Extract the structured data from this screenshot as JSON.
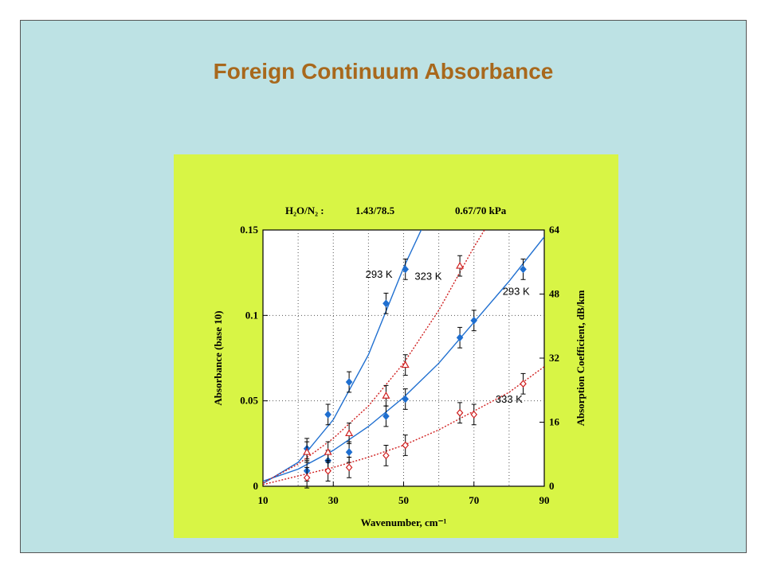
{
  "chart_data": {
    "type": "scatter",
    "title": "Foreign Continuum Absorbance",
    "header": [
      "H₂O/N₂ :",
      "1.43/78.5",
      "0.67/70 kPa"
    ],
    "x_label": "Wavenumber, cm⁻¹",
    "y_label": "Absorbance (base 10)",
    "y2_label": "Absorption Coefficient, dB/km",
    "xlim": [
      10,
      90
    ],
    "xticks": [
      10,
      30,
      50,
      70,
      90
    ],
    "xgrid": [
      20,
      30,
      40,
      50,
      60,
      70,
      80
    ],
    "ylim": [
      0,
      0.15
    ],
    "yticks": [
      0,
      0.05,
      0.1,
      0.15
    ],
    "ygrid": [
      0.05,
      0.1
    ],
    "y2lim": [
      0,
      64
    ],
    "y2ticks": [
      0,
      16,
      32,
      48,
      64
    ],
    "series": [
      {
        "color": "#1f6fd0",
        "marker": "filled-diamond",
        "line": "solid",
        "x": [
          22.5,
          28.5,
          34.5,
          45,
          50.5
        ],
        "values": [
          0.022,
          0.042,
          0.061,
          0.107,
          0.127
        ],
        "errors": [
          0.006,
          0.006,
          0.006,
          0.006,
          0.006
        ],
        "fit_x": [
          10,
          20,
          30,
          40,
          50,
          55
        ],
        "fit_values": [
          0.0016,
          0.014,
          0.039,
          0.077,
          0.128,
          0.15
        ]
      },
      {
        "color": "#1f6fd0",
        "marker": "filled-diamond",
        "line": "solid",
        "x": [
          22.5,
          28.5,
          34.5,
          45,
          50.5,
          66,
          70,
          84
        ],
        "values": [
          0.009,
          0.015,
          0.02,
          0.041,
          0.051,
          0.087,
          0.097,
          0.127
        ],
        "errors": [
          0.006,
          0.006,
          0.006,
          0.006,
          0.006,
          0.006,
          0.006,
          0.006
        ],
        "fit_x": [
          10,
          20,
          30,
          40,
          50,
          60,
          70,
          80,
          90
        ],
        "fit_values": [
          0.003,
          0.01,
          0.021,
          0.035,
          0.052,
          0.072,
          0.096,
          0.12,
          0.146
        ]
      },
      {
        "color": "#d02020",
        "marker": "open-triangle",
        "line": "dotted",
        "x": [
          22.5,
          28.5,
          34.5,
          45,
          50.5,
          66
        ],
        "values": [
          0.02,
          0.02,
          0.031,
          0.053,
          0.071,
          0.129
        ],
        "errors": [
          0.006,
          0.006,
          0.006,
          0.006,
          0.006,
          0.006
        ],
        "fit_x": [
          10,
          20,
          30,
          40,
          50,
          60,
          70,
          73
        ],
        "fit_values": [
          0.002,
          0.013,
          0.028,
          0.047,
          0.072,
          0.103,
          0.14,
          0.15
        ]
      },
      {
        "color": "#d02020",
        "marker": "open-diamond",
        "line": "dotted",
        "x": [
          22.5,
          28.5,
          34.5,
          45,
          50.5,
          66,
          70,
          84
        ],
        "values": [
          0.005,
          0.009,
          0.011,
          0.018,
          0.024,
          0.043,
          0.042,
          0.06
        ],
        "errors": [
          0.006,
          0.006,
          0.006,
          0.006,
          0.006,
          0.006,
          0.006,
          0.006
        ],
        "fit_x": [
          10,
          20,
          30,
          40,
          50,
          60,
          70,
          80,
          90
        ],
        "fit_values": [
          0.001,
          0.006,
          0.011,
          0.017,
          0.024,
          0.033,
          0.044,
          0.055,
          0.07
        ]
      }
    ],
    "annotations": [
      {
        "text": "293 K",
        "x": 43,
        "y": 0.122
      },
      {
        "text": "323 K",
        "x": 57,
        "y": 0.121
      },
      {
        "text": "293 K",
        "x": 82,
        "y": 0.112
      },
      {
        "text": "333 K",
        "x": 80,
        "y": 0.049
      }
    ]
  }
}
